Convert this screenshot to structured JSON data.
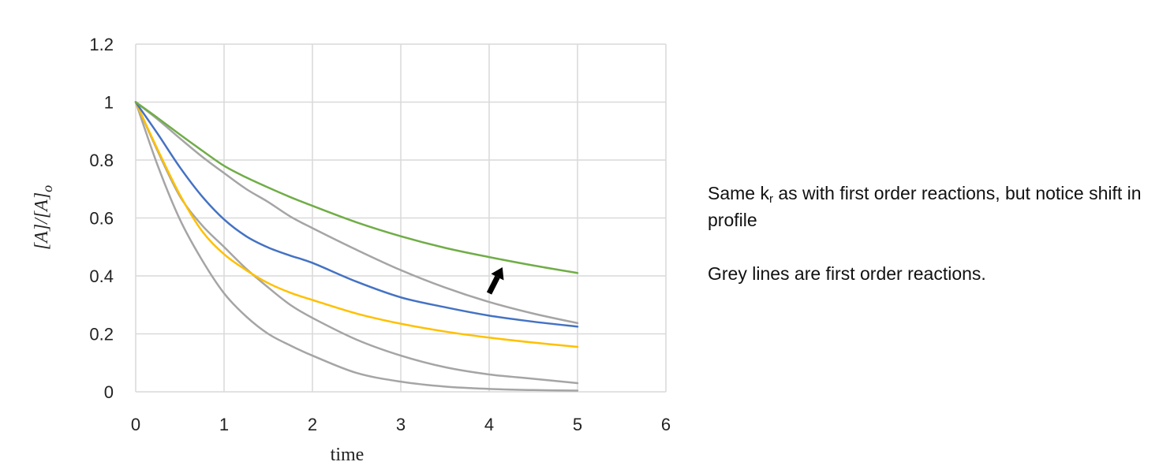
{
  "chart_data": {
    "type": "line",
    "xlabel": "time",
    "ylabel": "[A]/[A]o",
    "xlim": [
      0,
      6
    ],
    "ylim": [
      0,
      1.2
    ],
    "xticks": [
      "0",
      "1",
      "2",
      "3",
      "4",
      "5",
      "6"
    ],
    "yticks": [
      "0",
      "0.2",
      "0.4",
      "0.6",
      "0.8",
      "1",
      "1.2"
    ],
    "grid": true,
    "x": [
      0,
      0.25,
      0.5,
      0.75,
      1,
      1.25,
      1.5,
      1.75,
      2,
      2.5,
      3,
      3.5,
      4,
      4.5,
      5
    ],
    "series": [
      {
        "color": "#70ad47",
        "values": [
          1.0,
          0.945,
          0.888,
          0.833,
          0.78,
          0.74,
          0.705,
          0.672,
          0.642,
          0.585,
          0.537,
          0.497,
          0.465,
          0.436,
          0.41
        ]
      },
      {
        "color": "#4472c4",
        "values": [
          1.0,
          0.89,
          0.775,
          0.675,
          0.595,
          0.537,
          0.498,
          0.47,
          0.445,
          0.38,
          0.326,
          0.292,
          0.263,
          0.242,
          0.225
        ]
      },
      {
        "color": "#ffc000",
        "values": [
          1.0,
          0.835,
          0.68,
          0.555,
          0.475,
          0.42,
          0.375,
          0.342,
          0.317,
          0.27,
          0.235,
          0.208,
          0.187,
          0.17,
          0.155
        ]
      },
      {
        "color": "#a5a5a5",
        "values": [
          1.0,
          0.94,
          0.875,
          0.812,
          0.755,
          0.7,
          0.655,
          0.605,
          0.565,
          0.49,
          0.42,
          0.36,
          0.31,
          0.27,
          0.237
        ]
      },
      {
        "color": "#a5a5a5",
        "values": [
          1.0,
          0.83,
          0.675,
          0.575,
          0.5,
          0.425,
          0.36,
          0.3,
          0.255,
          0.18,
          0.125,
          0.085,
          0.06,
          0.045,
          0.03
        ]
      },
      {
        "color": "#a5a5a5",
        "values": [
          1.0,
          0.78,
          0.595,
          0.455,
          0.34,
          0.26,
          0.2,
          0.16,
          0.125,
          0.065,
          0.035,
          0.018,
          0.01,
          0.006,
          0.004
        ]
      }
    ],
    "annotations": [
      {
        "type": "arrow",
        "color": "#000000",
        "from": [
          4.0,
          0.34
        ],
        "to": [
          4.15,
          0.43
        ]
      }
    ]
  },
  "notes": {
    "line1_before_sub": "Same k",
    "line1_sub": "r",
    "line1_after_sub": " as with first order reactions, but notice shift in profile",
    "line2": "Grey lines are first order reactions."
  },
  "colors": {
    "grid": "#d9d9d9",
    "text": "#222222",
    "first_order": "#a5a5a5"
  }
}
